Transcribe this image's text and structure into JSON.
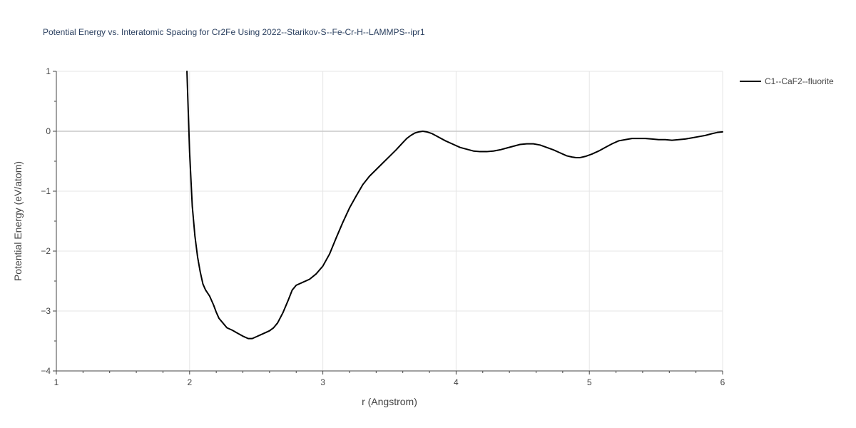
{
  "chart_data": {
    "type": "line",
    "title": "Potential Energy vs. Interatomic Spacing for Cr2Fe Using 2022--Starikov-S--Fe-Cr-H--LAMMPS--ipr1",
    "xlabel": "r (Angstrom)",
    "ylabel": "Potential Energy (eV/atom)",
    "xlim": [
      1,
      6
    ],
    "ylim": [
      -4,
      1
    ],
    "x_ticks": [
      "1",
      "2",
      "3",
      "4",
      "5",
      "6"
    ],
    "y_ticks": [
      "1",
      "0",
      "−1",
      "−2",
      "−3",
      "−4"
    ],
    "x_tick_values": [
      1,
      2,
      3,
      4,
      5,
      6
    ],
    "y_tick_values": [
      1,
      0,
      -1,
      -2,
      -3,
      -4
    ],
    "grid": true,
    "legend_position": "top-right",
    "series": [
      {
        "name": "C1--CaF2--fluorite",
        "color": "#000000",
        "x": [
          1.98,
          2.0,
          2.02,
          2.04,
          2.06,
          2.08,
          2.1,
          2.12,
          2.15,
          2.18,
          2.2,
          2.22,
          2.25,
          2.28,
          2.32,
          2.36,
          2.4,
          2.44,
          2.47,
          2.5,
          2.55,
          2.6,
          2.63,
          2.66,
          2.7,
          2.74,
          2.77,
          2.8,
          2.85,
          2.9,
          2.95,
          3.0,
          3.05,
          3.1,
          3.15,
          3.2,
          3.25,
          3.3,
          3.35,
          3.4,
          3.45,
          3.5,
          3.55,
          3.6,
          3.63,
          3.66,
          3.69,
          3.72,
          3.75,
          3.78,
          3.82,
          3.87,
          3.92,
          3.97,
          4.03,
          4.08,
          4.13,
          4.18,
          4.23,
          4.28,
          4.33,
          4.38,
          4.43,
          4.48,
          4.53,
          4.58,
          4.63,
          4.68,
          4.73,
          4.78,
          4.83,
          4.87,
          4.9,
          4.93,
          4.97,
          5.02,
          5.07,
          5.12,
          5.17,
          5.22,
          5.27,
          5.32,
          5.37,
          5.42,
          5.47,
          5.52,
          5.57,
          5.62,
          5.67,
          5.72,
          5.77,
          5.82,
          5.87,
          5.92,
          5.96,
          6.0
        ],
        "y": [
          1.0,
          -0.35,
          -1.25,
          -1.75,
          -2.1,
          -2.35,
          -2.55,
          -2.65,
          -2.75,
          -2.9,
          -3.02,
          -3.12,
          -3.2,
          -3.28,
          -3.32,
          -3.37,
          -3.42,
          -3.46,
          -3.46,
          -3.43,
          -3.38,
          -3.33,
          -3.28,
          -3.2,
          -3.03,
          -2.82,
          -2.65,
          -2.57,
          -2.52,
          -2.47,
          -2.38,
          -2.25,
          -2.05,
          -1.78,
          -1.52,
          -1.28,
          -1.08,
          -0.89,
          -0.75,
          -0.64,
          -0.53,
          -0.42,
          -0.31,
          -0.19,
          -0.12,
          -0.07,
          -0.03,
          -0.01,
          0.0,
          -0.01,
          -0.04,
          -0.1,
          -0.16,
          -0.21,
          -0.27,
          -0.3,
          -0.33,
          -0.34,
          -0.34,
          -0.33,
          -0.31,
          -0.28,
          -0.25,
          -0.22,
          -0.21,
          -0.21,
          -0.23,
          -0.27,
          -0.31,
          -0.36,
          -0.41,
          -0.43,
          -0.44,
          -0.44,
          -0.42,
          -0.38,
          -0.33,
          -0.27,
          -0.21,
          -0.16,
          -0.14,
          -0.12,
          -0.12,
          -0.12,
          -0.13,
          -0.14,
          -0.14,
          -0.15,
          -0.14,
          -0.13,
          -0.11,
          -0.09,
          -0.07,
          -0.04,
          -0.02,
          -0.01
        ]
      }
    ]
  }
}
